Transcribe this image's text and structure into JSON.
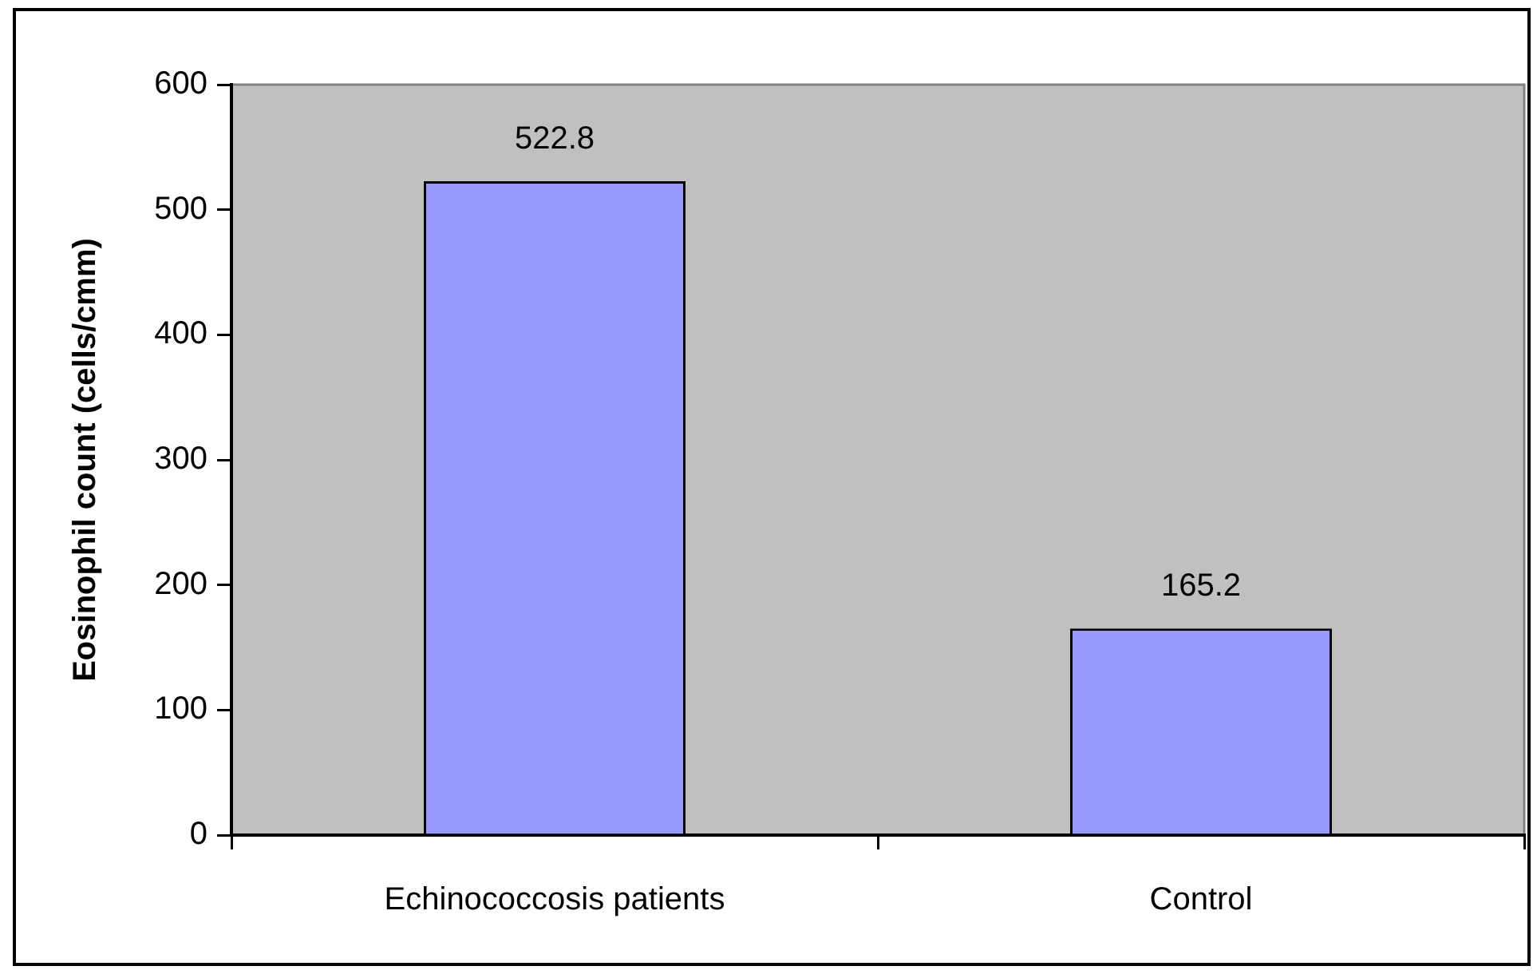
{
  "chart_data": {
    "type": "bar",
    "ylabel": "Eosinophil count (cells/cmm)",
    "categories": [
      "Echinococcosis patients",
      "Control"
    ],
    "values": [
      522.8,
      165.2
    ],
    "color": "#9999ff",
    "ylim": [
      0,
      600
    ],
    "yticks": [
      0,
      100,
      200,
      300,
      400,
      500,
      600
    ],
    "grid": false,
    "legend": false,
    "data_labels": true
  }
}
